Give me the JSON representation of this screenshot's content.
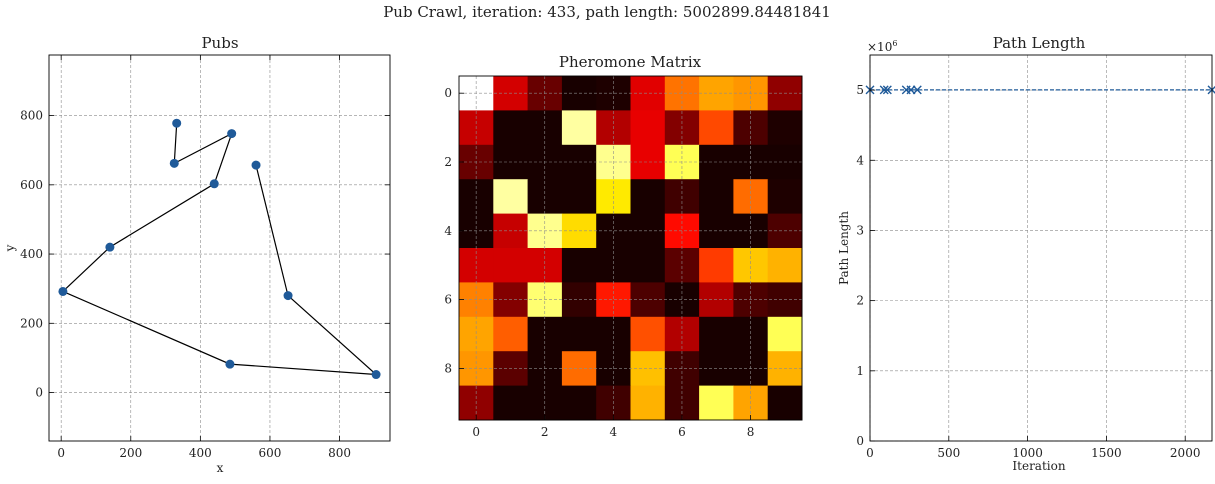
{
  "suptitle": "Pub Crawl, iteration: 433, path length: 5002899.84481841",
  "chart_data": [
    {
      "type": "scatter",
      "title": "Pubs",
      "xlabel": "x",
      "ylabel": "y",
      "xlim": [
        -35,
        945
      ],
      "ylim": [
        -140,
        975
      ],
      "xticks": [
        0,
        200,
        400,
        600,
        800
      ],
      "yticks": [
        0,
        200,
        400,
        600,
        800
      ],
      "grid": true,
      "points": [
        {
          "x": 332,
          "y": 778
        },
        {
          "x": 325,
          "y": 662
        },
        {
          "x": 490,
          "y": 748
        },
        {
          "x": 440,
          "y": 603
        },
        {
          "x": 140,
          "y": 420
        },
        {
          "x": 5,
          "y": 292
        },
        {
          "x": 485,
          "y": 82
        },
        {
          "x": 905,
          "y": 52
        },
        {
          "x": 652,
          "y": 280
        },
        {
          "x": 560,
          "y": 657
        }
      ],
      "path_order": [
        0,
        1,
        2,
        3,
        4,
        5,
        6,
        7,
        8,
        9
      ],
      "point_color": "#1f5a99",
      "path_color": "#000000"
    },
    {
      "type": "heatmap",
      "title": "Pheromone Matrix",
      "xticks": [
        0,
        2,
        4,
        6,
        8
      ],
      "yticks": [
        0,
        2,
        4,
        6,
        8
      ],
      "grid": true,
      "colormap": "hot",
      "values": [
        [
          1.0,
          0.3,
          0.14,
          0.02,
          0.03,
          0.32,
          0.53,
          0.6,
          0.58,
          0.2
        ],
        [
          0.28,
          0.02,
          0.02,
          0.9,
          0.25,
          0.33,
          0.18,
          0.47,
          0.1,
          0.03
        ],
        [
          0.14,
          0.02,
          0.02,
          0.02,
          0.88,
          0.33,
          0.82,
          0.02,
          0.02,
          0.02
        ],
        [
          0.02,
          0.9,
          0.02,
          0.02,
          0.7,
          0.02,
          0.08,
          0.02,
          0.52,
          0.03
        ],
        [
          0.02,
          0.28,
          0.88,
          0.68,
          0.02,
          0.02,
          0.38,
          0.02,
          0.02,
          0.1
        ],
        [
          0.3,
          0.3,
          0.3,
          0.02,
          0.02,
          0.02,
          0.12,
          0.45,
          0.65,
          0.62
        ],
        [
          0.55,
          0.18,
          0.85,
          0.06,
          0.4,
          0.1,
          0.02,
          0.25,
          0.1,
          0.08
        ],
        [
          0.6,
          0.5,
          0.02,
          0.02,
          0.02,
          0.48,
          0.25,
          0.02,
          0.02,
          0.82
        ],
        [
          0.58,
          0.12,
          0.02,
          0.52,
          0.02,
          0.64,
          0.08,
          0.02,
          0.02,
          0.62
        ],
        [
          0.2,
          0.02,
          0.02,
          0.02,
          0.08,
          0.62,
          0.08,
          0.82,
          0.6,
          0.02
        ]
      ]
    },
    {
      "type": "line",
      "title": "Path Length",
      "xlabel": "Iteration",
      "ylabel": "Path Length",
      "y_multiplier_label": "×10^6",
      "xlim": [
        0,
        2170
      ],
      "ylim": [
        0,
        5.5
      ],
      "xticks": [
        0,
        500,
        1000,
        1500,
        2000
      ],
      "yticks": [
        0,
        1,
        2,
        3,
        4,
        5
      ],
      "grid": true,
      "series": [
        {
          "x": [
            0,
            90,
            110,
            230,
            260,
            300,
            2170
          ],
          "y": [
            5.003,
            5.003,
            5.003,
            5.003,
            5.003,
            5.003,
            5.003
          ],
          "marker": "x",
          "linestyle": "dashed",
          "color": "#1f5a99"
        }
      ]
    }
  ]
}
